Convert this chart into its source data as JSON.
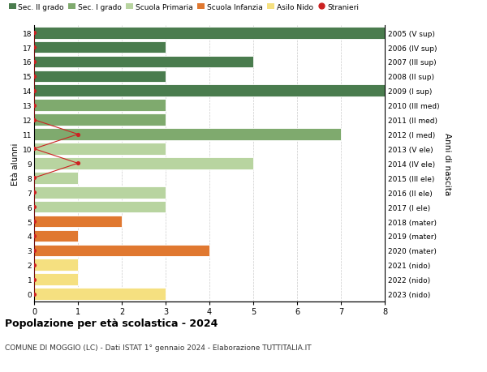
{
  "ages": [
    18,
    17,
    16,
    15,
    14,
    13,
    12,
    11,
    10,
    9,
    8,
    7,
    6,
    5,
    4,
    3,
    2,
    1,
    0
  ],
  "right_labels": [
    "2005 (V sup)",
    "2006 (IV sup)",
    "2007 (III sup)",
    "2008 (II sup)",
    "2009 (I sup)",
    "2010 (III med)",
    "2011 (II med)",
    "2012 (I med)",
    "2013 (V ele)",
    "2014 (IV ele)",
    "2015 (III ele)",
    "2016 (II ele)",
    "2017 (I ele)",
    "2018 (mater)",
    "2019 (mater)",
    "2020 (mater)",
    "2021 (nido)",
    "2022 (nido)",
    "2023 (nido)"
  ],
  "bar_values": [
    8,
    3,
    5,
    3,
    8,
    3,
    3,
    7,
    3,
    5,
    1,
    3,
    3,
    2,
    1,
    4,
    1,
    1,
    3
  ],
  "bar_colors": [
    "#4a7c4e",
    "#4a7c4e",
    "#4a7c4e",
    "#4a7c4e",
    "#4a7c4e",
    "#7faa6e",
    "#7faa6e",
    "#7faa6e",
    "#b8d4a0",
    "#b8d4a0",
    "#b8d4a0",
    "#b8d4a0",
    "#b8d4a0",
    "#e07830",
    "#e07830",
    "#e07830",
    "#f5e080",
    "#f5e080",
    "#f5e080"
  ],
  "stranieri_ages": [
    18,
    17,
    16,
    15,
    14,
    13,
    12,
    11,
    10,
    9,
    8,
    7,
    6,
    5,
    4,
    3,
    2,
    1,
    0
  ],
  "stranieri_values": [
    0,
    0,
    0,
    0,
    0,
    0,
    0,
    1,
    0,
    1,
    0,
    0,
    0,
    0,
    0,
    0,
    0,
    0,
    0
  ],
  "title_main": "Popolazione per età scolastica - 2024",
  "title_sub": "COMUNE DI MOGGIO (LC) - Dati ISTAT 1° gennaio 2024 - Elaborazione TUTTITALIA.IT",
  "ylabel_left": "Età alunni",
  "ylabel_right": "Anni di nascita",
  "xlim": [
    0,
    8
  ],
  "xticks": [
    0,
    1,
    2,
    3,
    4,
    5,
    6,
    7,
    8
  ],
  "legend_labels": [
    "Sec. II grado",
    "Sec. I grado",
    "Scuola Primaria",
    "Scuola Infanzia",
    "Asilo Nido",
    "Stranieri"
  ],
  "legend_colors": [
    "#4a7c4e",
    "#7faa6e",
    "#b8d4a0",
    "#e07830",
    "#f5e080",
    "#cc2222"
  ],
  "bg_color": "#ffffff",
  "grid_color": "#cccccc"
}
